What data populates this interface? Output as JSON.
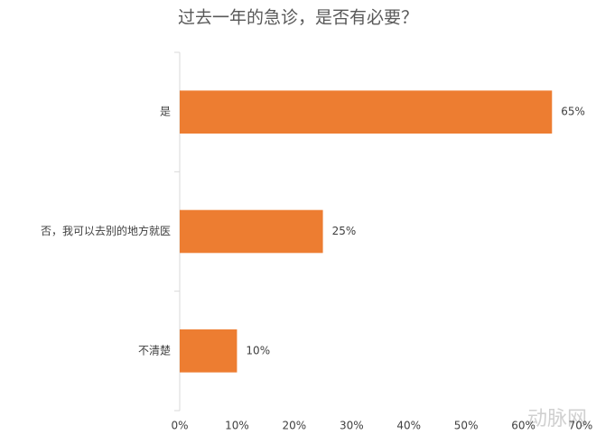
{
  "chart_data": {
    "type": "hbar",
    "title": "过去一年的急诊，是否有必要？",
    "categories": [
      "是",
      "否，我可以去别的地方就医",
      "不清楚"
    ],
    "values": [
      65,
      25,
      10
    ],
    "value_labels": [
      "65%",
      "25%",
      "10%"
    ],
    "color": "#ed7d31",
    "xlim": [
      0,
      70
    ],
    "xticks": [
      {
        "value": 0,
        "label": "0%"
      },
      {
        "value": 10,
        "label": "10%"
      },
      {
        "value": 20,
        "label": "20%"
      },
      {
        "value": 30,
        "label": "30%"
      },
      {
        "value": 40,
        "label": "40%"
      },
      {
        "value": 50,
        "label": "50%"
      },
      {
        "value": 60,
        "label": "60%"
      },
      {
        "value": 70,
        "label": "70%"
      }
    ],
    "grid": false,
    "watermark": "动脉网"
  }
}
